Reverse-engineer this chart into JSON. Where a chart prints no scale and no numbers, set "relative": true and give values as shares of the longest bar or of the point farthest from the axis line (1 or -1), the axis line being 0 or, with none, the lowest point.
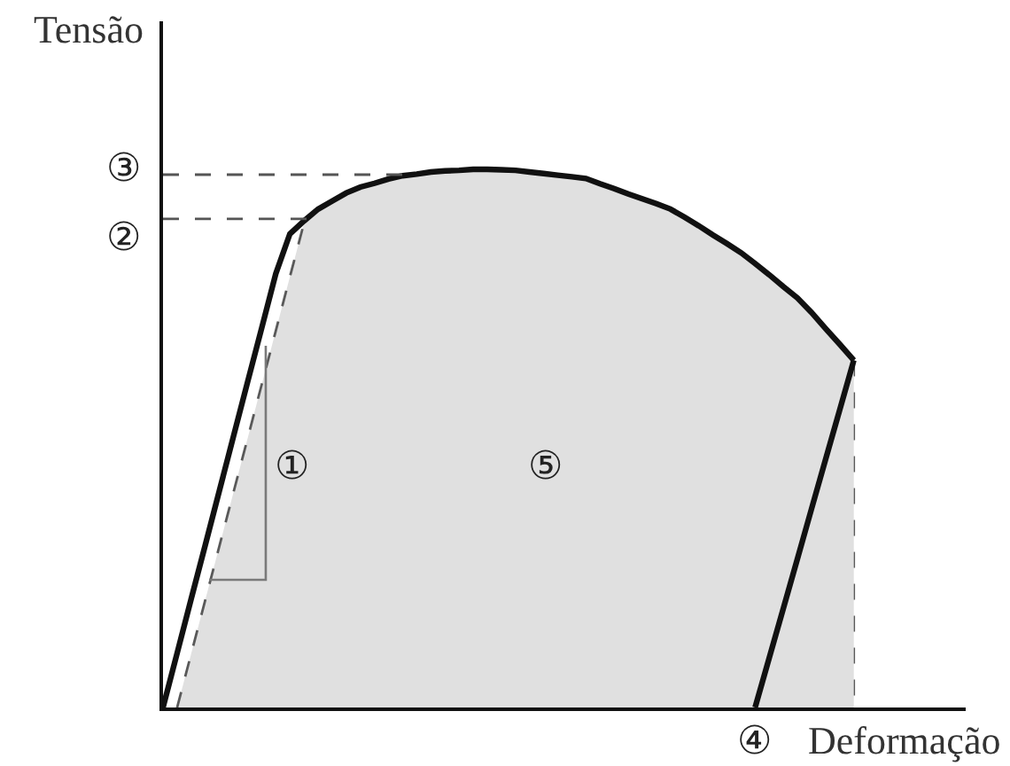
{
  "chart_data": {
    "type": "line",
    "xlabel": "Deformação",
    "ylabel": "Tensão",
    "relative": true,
    "grid": false,
    "categories": [
      null,
      null,
      null,
      null,
      null,
      null,
      null,
      null,
      null,
      null,
      null,
      null,
      null,
      null,
      null,
      null,
      null,
      null,
      null,
      null,
      null,
      null,
      null,
      null,
      null,
      null,
      null,
      null,
      null,
      null,
      null,
      null,
      null,
      null,
      null,
      null,
      null,
      null,
      null,
      null,
      null,
      null,
      null,
      null,
      null,
      null,
      null,
      null,
      null,
      null
    ],
    "series": [
      {
        "type": "area",
        "color": "#e0e0e0",
        "line_style": "dashed",
        "values": [
          null,
          0,
          0.1,
          0.2,
          0.3,
          0.4,
          0.5,
          0.6,
          0.7,
          0.8,
          0.9,
          0.926,
          0.941,
          0.956,
          0.967,
          0.974,
          0.982,
          0.988,
          0.991,
          0.995,
          0.997,
          0.998,
          1.0,
          1.0,
          0.999,
          0.998,
          0.995,
          0.992,
          0.989,
          0.986,
          0.983,
          0.973,
          0.964,
          0.954,
          0.945,
          0.936,
          0.926,
          0.911,
          0.895,
          0.878,
          0.862,
          0.845,
          0.825,
          0.804,
          0.782,
          0.761,
          0.734,
          0.704,
          0.675,
          0.645
        ]
      },
      {
        "color": "#111111",
        "line_style": "solid",
        "values": [
          0,
          0.101,
          0.202,
          0.302,
          0.403,
          0.504,
          0.605,
          0.705,
          0.806,
          0.88,
          0.904,
          0.926,
          0.941,
          0.956,
          0.967,
          0.974,
          0.982,
          0.988,
          0.991,
          0.995,
          0.997,
          0.998,
          1.0,
          1.0,
          0.999,
          0.998,
          0.995,
          0.992,
          0.989,
          0.986,
          0.983,
          0.973,
          0.964,
          0.954,
          0.945,
          0.936,
          0.926,
          0.911,
          0.895,
          0.878,
          0.862,
          0.845,
          0.825,
          0.804,
          0.782,
          0.761,
          0.734,
          0.704,
          0.675,
          0.645
        ]
      },
      {
        "color": "#111111",
        "line_style": "solid",
        "values": [
          null,
          null,
          null,
          null,
          null,
          null,
          null,
          null,
          null,
          null,
          null,
          null,
          null,
          null,
          null,
          null,
          null,
          null,
          null,
          null,
          null,
          null,
          null,
          null,
          null,
          null,
          null,
          null,
          null,
          null,
          null,
          null,
          null,
          null,
          null,
          null,
          null,
          null,
          null,
          null,
          null,
          null,
          0,
          0.092,
          0.184,
          0.276,
          0.369,
          0.461,
          0.553,
          0.645
        ]
      }
    ],
    "ref_lines": [
      {
        "axis": "y",
        "value": 0.908,
        "label": "②",
        "color": "#555555",
        "line_style": "dashed"
      },
      {
        "axis": "y",
        "value": 0.99,
        "label": "③",
        "color": "#555555",
        "line_style": "dashed"
      }
    ],
    "annotations": [
      "①",
      "⑤",
      "④"
    ]
  }
}
